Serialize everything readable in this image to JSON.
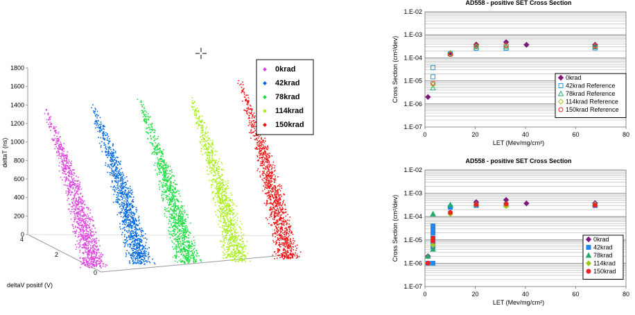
{
  "chart_data": [
    {
      "type": "scatter",
      "projection": "3d",
      "title": "",
      "zlabel": "deltaT (ns)",
      "ylabel": "deltaV positif (V)",
      "xlabel": "",
      "zlim": [
        0,
        1800
      ],
      "zticks": [
        "0",
        "200",
        "400",
        "600",
        "800",
        "1000",
        "1200",
        "1400",
        "1600",
        "1800"
      ],
      "yticks": [
        "0",
        "2",
        "4"
      ],
      "legend_position": "top-right",
      "series": [
        {
          "name": "0krad",
          "color": "#dd44dd",
          "peak": 1400
        },
        {
          "name": "42krad",
          "color": "#0066dd",
          "peak": 1420
        },
        {
          "name": "78krad",
          "color": "#22dd44",
          "peak": 1480
        },
        {
          "name": "114krad",
          "color": "#aaee22",
          "peak": 1570
        },
        {
          "name": "150krad",
          "color": "#ee1111",
          "peak": 1700
        }
      ]
    },
    {
      "type": "scatter",
      "title": "AD558 - positive SET Cross Section",
      "xlabel": "LET (Mev/mg/cm²)",
      "ylabel": "Cross Section (cm²/dev)",
      "xlim": [
        0,
        80
      ],
      "ylim": [
        1e-07,
        0.01
      ],
      "yscale": "log",
      "grid": true,
      "xticks": [
        "0",
        "20",
        "40",
        "60",
        "80"
      ],
      "yticks": [
        "1.E-07",
        "1.E-06",
        "1.E-05",
        "1.E-04",
        "1.E-03",
        "1.E-02"
      ],
      "legend_position": "bottom-right",
      "series": [
        {
          "name": "0krad",
          "marker": "diamond-filled",
          "color": "#7a1a7a",
          "points": [
            [
              1.2,
              2e-06
            ],
            [
              10.1,
              0.00016
            ],
            [
              20.4,
              0.00038
            ],
            [
              32.3,
              0.00048
            ],
            [
              40.4,
              0.00037
            ],
            [
              67.7,
              0.00037
            ]
          ]
        },
        {
          "name": "42krad Reference",
          "marker": "square",
          "color": "#2299dd",
          "points": [
            [
              3.2,
              3.8e-05
            ],
            [
              3.2,
              1.5e-05
            ],
            [
              10.1,
              0.00015
            ],
            [
              20.4,
              0.00026
            ],
            [
              32.3,
              0.00026
            ],
            [
              67.7,
              0.00027
            ]
          ]
        },
        {
          "name": "78krad Reference",
          "marker": "triangle",
          "color": "#22aa66",
          "points": [
            [
              3.2,
              5e-06
            ],
            [
              10.1,
              0.00016
            ],
            [
              20.4,
              0.0003
            ],
            [
              32.3,
              0.0003
            ],
            [
              67.7,
              0.0003
            ]
          ]
        },
        {
          "name": "114krad Reference",
          "marker": "diamond",
          "color": "#99cc22",
          "points": [
            [
              3.2,
              7e-06
            ],
            [
              10.1,
              0.00015
            ],
            [
              20.4,
              0.00032
            ],
            [
              32.3,
              0.00035
            ],
            [
              67.7,
              0.00033
            ]
          ]
        },
        {
          "name": "150krad Reference",
          "marker": "circle",
          "color": "#ee2222",
          "points": [
            [
              3.2,
              8e-06
            ],
            [
              10.1,
              0.00014
            ],
            [
              20.4,
              0.00033
            ],
            [
              32.3,
              0.00034
            ],
            [
              67.7,
              0.00032
            ]
          ]
        }
      ]
    },
    {
      "type": "scatter",
      "title": "AD558 - positive SET Cross Section",
      "xlabel": "LET (Mev/mg/cm²)",
      "ylabel": "Cross Section (cm²/dev)",
      "xlim": [
        0,
        80
      ],
      "ylim": [
        1e-07,
        0.01
      ],
      "yscale": "log",
      "grid": true,
      "xticks": [
        "0",
        "20",
        "40",
        "60",
        "80"
      ],
      "yticks": [
        "1.E-07",
        "1.E-06",
        "1.E-05",
        "1.E-04",
        "1.E-03",
        "1.E-02"
      ],
      "legend_position": "bottom-right",
      "series": [
        {
          "name": "0krad",
          "marker": "diamond-filled",
          "color": "#7a1a7a",
          "points": [
            [
              1.2,
              2e-06
            ],
            [
              10.1,
              0.00025
            ],
            [
              20.4,
              0.00042
            ],
            [
              32.3,
              0.00052
            ],
            [
              40.4,
              0.00037
            ],
            [
              67.7,
              0.00038
            ]
          ]
        },
        {
          "name": "42krad",
          "marker": "square-filled",
          "color": "#2288ee",
          "points": [
            [
              1.2,
              1e-06
            ],
            [
              3.2,
              1e-06
            ],
            [
              3.2,
              4e-05
            ],
            [
              3.2,
              3e-05
            ],
            [
              3.2,
              2e-05
            ],
            [
              3.2,
              1.2e-05
            ],
            [
              3.2,
              8e-06
            ],
            [
              3.2,
              5e-06
            ],
            [
              10.1,
              0.00025
            ],
            [
              20.4,
              0.0003
            ],
            [
              32.3,
              0.00032
            ],
            [
              67.7,
              0.0003
            ]
          ]
        },
        {
          "name": "78krad",
          "marker": "triangle-filled",
          "color": "#22aa66",
          "points": [
            [
              1.2,
              2e-06
            ],
            [
              3.2,
              4e-06
            ],
            [
              3.2,
              0.00013
            ],
            [
              10.1,
              0.00032
            ],
            [
              20.4,
              0.00035
            ],
            [
              32.3,
              0.00035
            ],
            [
              67.7,
              0.00034
            ]
          ]
        },
        {
          "name": "114krad",
          "marker": "diamond-filled",
          "color": "#99cc22",
          "points": [
            [
              3.2,
              6e-06
            ],
            [
              10.1,
              0.00013
            ],
            [
              20.4,
              0.00032
            ],
            [
              32.3,
              0.00028
            ],
            [
              67.7,
              0.00033
            ]
          ]
        },
        {
          "name": "150krad",
          "marker": "circle-filled",
          "color": "#ee2222",
          "points": [
            [
              1.2,
              1e-06
            ],
            [
              3.2,
              9e-06
            ],
            [
              3.2,
              1.2e-05
            ],
            [
              10.1,
              0.00015
            ],
            [
              20.4,
              0.00033
            ],
            [
              32.3,
              0.00035
            ],
            [
              67.7,
              0.00031
            ]
          ]
        }
      ]
    }
  ]
}
